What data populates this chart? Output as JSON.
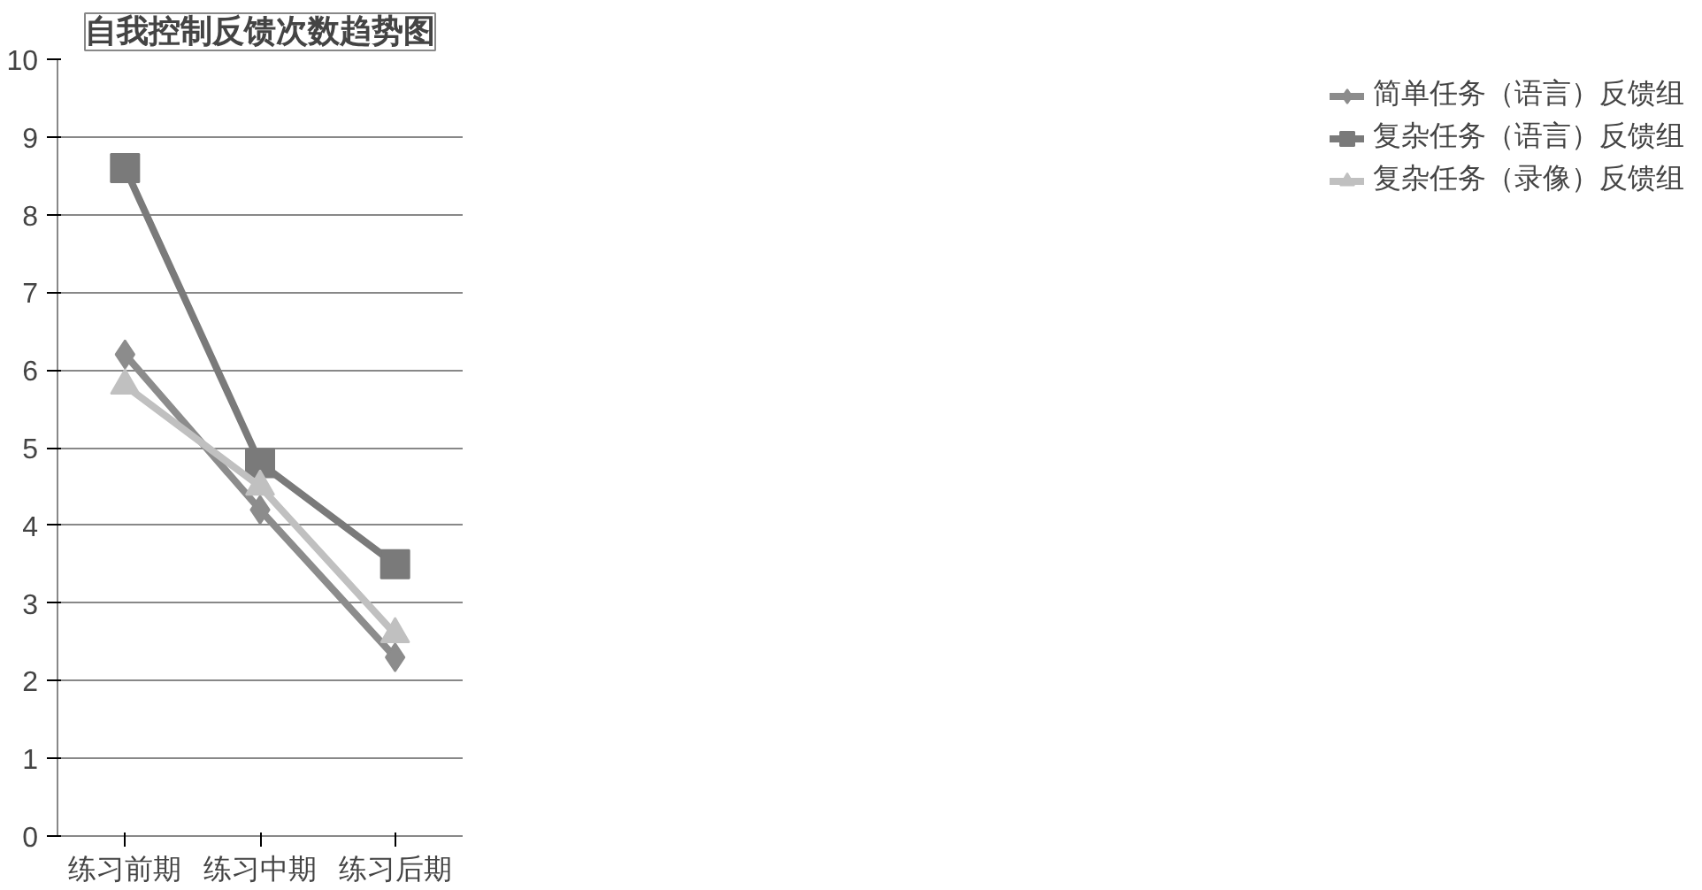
{
  "chart_data": {
    "type": "line",
    "title": "自我控制反馈次数趋势图",
    "categories": [
      "练习前期",
      "练习中期",
      "练习后期"
    ],
    "series": [
      {
        "name": "简单任务（语言）反馈组",
        "color": "#8c8c8c",
        "marker": "diamond",
        "values": [
          6.2,
          4.2,
          2.3
        ]
      },
      {
        "name": "复杂任务（语言）反馈组",
        "color": "#7a7a7a",
        "marker": "square",
        "values": [
          8.6,
          4.8,
          3.5
        ]
      },
      {
        "name": "复杂任务（录像）反馈组",
        "color": "#c0c0c0",
        "marker": "triangle",
        "values": [
          5.8,
          4.5,
          2.6
        ]
      }
    ],
    "ylim": [
      0,
      10
    ],
    "yticks": [
      0,
      1,
      2,
      3,
      4,
      5,
      6,
      7,
      8,
      9,
      10
    ],
    "grid": "y",
    "legend": "right",
    "line_style": "solid"
  }
}
